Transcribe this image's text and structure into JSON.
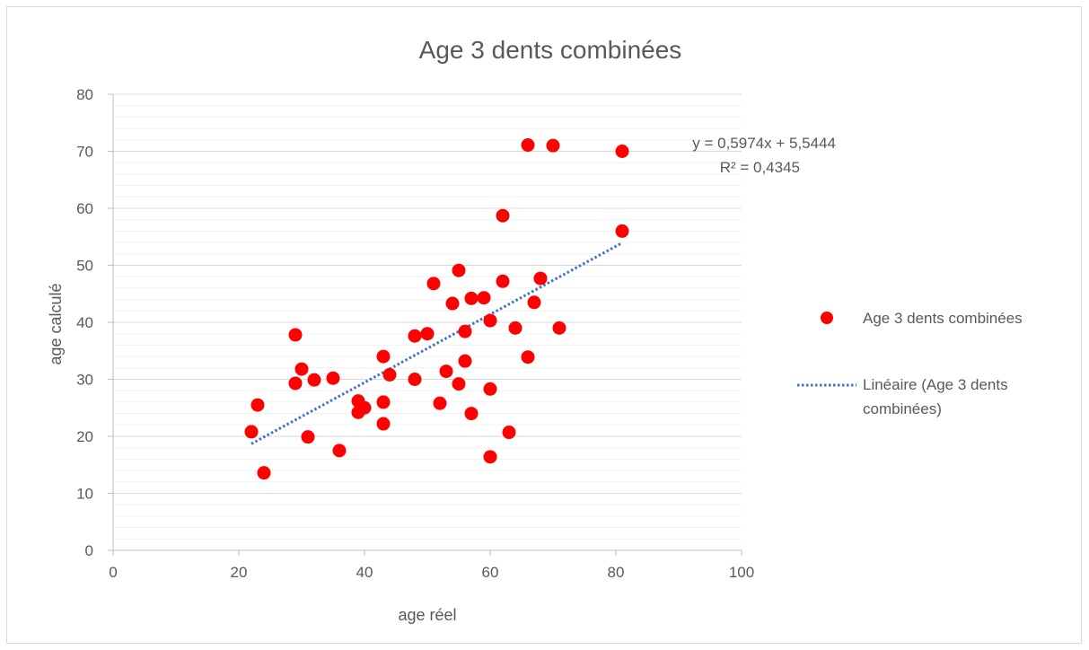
{
  "chart_data": {
    "type": "scatter",
    "title": "Age 3 dents combinées",
    "xlabel": "age réel",
    "ylabel": "age calculé",
    "xlim": [
      0,
      100
    ],
    "ylim": [
      0,
      80
    ],
    "x_ticks": [
      "0",
      "20",
      "40",
      "60",
      "80",
      "100"
    ],
    "y_ticks": [
      "0",
      "10",
      "20",
      "30",
      "40",
      "50",
      "60",
      "70",
      "80"
    ],
    "x_tick_values": [
      0,
      20,
      40,
      60,
      80,
      100
    ],
    "y_tick_values": [
      0,
      10,
      20,
      30,
      40,
      50,
      60,
      70,
      80
    ],
    "grid": true,
    "legend_position": "right",
    "series": [
      {
        "name": "Age 3 dents combinées",
        "color": "#ff0000",
        "points": [
          [
            22,
            20.8
          ],
          [
            23,
            25.5
          ],
          [
            24,
            13.6
          ],
          [
            29,
            37.8
          ],
          [
            29,
            29.3
          ],
          [
            30,
            31.8
          ],
          [
            31,
            19.9
          ],
          [
            32,
            29.9
          ],
          [
            35,
            30.2
          ],
          [
            36,
            17.5
          ],
          [
            39,
            26.2
          ],
          [
            39,
            24.2
          ],
          [
            40,
            25.0
          ],
          [
            43,
            34.0
          ],
          [
            43,
            26.0
          ],
          [
            43,
            22.2
          ],
          [
            44,
            30.8
          ],
          [
            48,
            37.6
          ],
          [
            48,
            30.0
          ],
          [
            50,
            38.0
          ],
          [
            51,
            46.8
          ],
          [
            52,
            25.8
          ],
          [
            53,
            31.4
          ],
          [
            54,
            43.3
          ],
          [
            55,
            49.1
          ],
          [
            55,
            29.2
          ],
          [
            56,
            38.4
          ],
          [
            56,
            33.2
          ],
          [
            57,
            44.2
          ],
          [
            57,
            24.0
          ],
          [
            59,
            44.3
          ],
          [
            60,
            40.3
          ],
          [
            60,
            28.3
          ],
          [
            60,
            16.4
          ],
          [
            62,
            58.7
          ],
          [
            62,
            47.2
          ],
          [
            63,
            20.7
          ],
          [
            64,
            39.0
          ],
          [
            66,
            71.1
          ],
          [
            66,
            33.9
          ],
          [
            67,
            43.5
          ],
          [
            68,
            47.7
          ],
          [
            70,
            71.0
          ],
          [
            71,
            39.0
          ],
          [
            81,
            70.0
          ],
          [
            81,
            56.0
          ]
        ]
      }
    ],
    "trendline": {
      "name": "Linéaire (Age 3 dents combinées)",
      "type": "linear",
      "color": "#4472c4",
      "slope": 0.5974,
      "intercept": 5.5444,
      "x_range": [
        22,
        81
      ],
      "equation_label": "y = 0,5974x + 5,5444",
      "r2_label": "R² = 0,4345"
    },
    "legend": [
      {
        "label": "Age 3 dents combinées",
        "marker": "dot",
        "color": "#ff0000"
      },
      {
        "label": "Linéaire (Age 3 dents",
        "label_line2": "combinées)",
        "marker": "dotted-line",
        "color": "#4472c4"
      }
    ]
  }
}
